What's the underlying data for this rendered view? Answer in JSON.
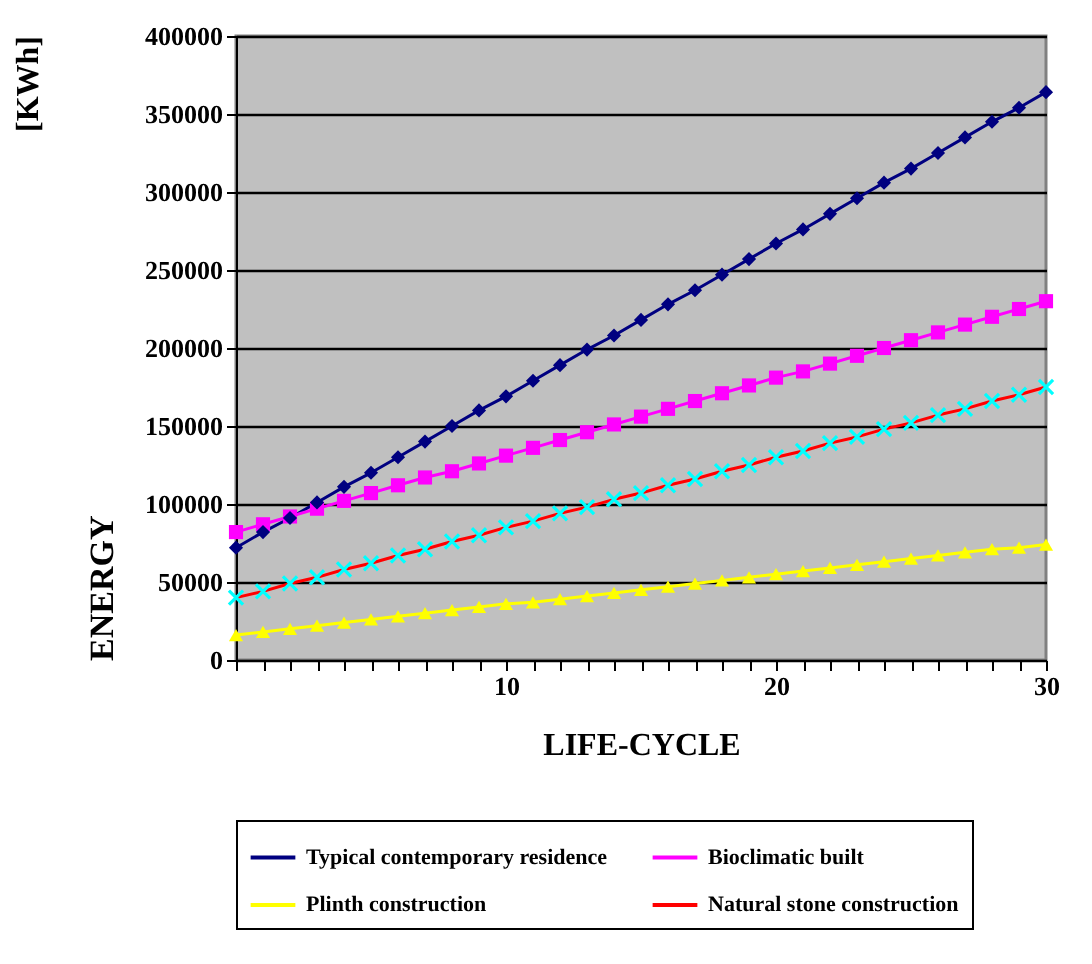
{
  "chart_data": {
    "type": "line",
    "xlabel": "LIFE-CYCLE",
    "ylabel": "ENERGY",
    "annotations": [
      "[KWh]"
    ],
    "x": [
      0,
      1,
      2,
      3,
      4,
      5,
      6,
      7,
      8,
      9,
      10,
      11,
      12,
      13,
      14,
      15,
      16,
      17,
      18,
      19,
      20,
      21,
      22,
      23,
      24,
      25,
      26,
      27,
      28,
      29,
      30
    ],
    "xlim": [
      0,
      30
    ],
    "xticks": [
      {
        "value": 0,
        "label": null
      },
      {
        "value": 1,
        "label": null
      },
      {
        "value": 2,
        "label": null
      },
      {
        "value": 3,
        "label": null
      },
      {
        "value": 4,
        "label": null
      },
      {
        "value": 5,
        "label": null
      },
      {
        "value": 6,
        "label": null
      },
      {
        "value": 7,
        "label": null
      },
      {
        "value": 8,
        "label": null
      },
      {
        "value": 9,
        "label": null
      },
      10,
      {
        "value": 11,
        "label": null
      },
      {
        "value": 12,
        "label": null
      },
      {
        "value": 13,
        "label": null
      },
      {
        "value": 14,
        "label": null
      },
      {
        "value": 15,
        "label": null
      },
      {
        "value": 16,
        "label": null
      },
      {
        "value": 17,
        "label": null
      },
      {
        "value": 18,
        "label": null
      },
      {
        "value": 19,
        "label": null
      },
      20,
      {
        "value": 21,
        "label": null
      },
      {
        "value": 22,
        "label": null
      },
      {
        "value": 23,
        "label": null
      },
      {
        "value": 24,
        "label": null
      },
      {
        "value": 25,
        "label": null
      },
      {
        "value": 26,
        "label": null
      },
      {
        "value": 27,
        "label": null
      },
      {
        "value": 28,
        "label": null
      },
      {
        "value": 29,
        "label": null
      },
      30
    ],
    "ylim": [
      0,
      400000
    ],
    "yticks": [
      0,
      50000,
      100000,
      150000,
      200000,
      250000,
      300000,
      350000,
      400000
    ],
    "grid": "y",
    "legend": "bottom",
    "line_style": "solid",
    "series": [
      {
        "name": "Typical contemporary residence",
        "color": "#000080",
        "marker": "diamond",
        "values": [
          72000,
          82000,
          91000,
          101000,
          111000,
          120000,
          130000,
          140000,
          150000,
          160000,
          169000,
          179000,
          189000,
          199000,
          208000,
          218000,
          228000,
          237000,
          247000,
          257000,
          267000,
          276000,
          286000,
          296000,
          306000,
          315000,
          325000,
          335000,
          345000,
          354000,
          364000
        ]
      },
      {
        "name": "Bioclimatic built",
        "color": "#ff00ff",
        "marker": "square",
        "values": [
          82000,
          87000,
          92000,
          97000,
          102000,
          107000,
          112000,
          117000,
          121000,
          126000,
          131000,
          136000,
          141000,
          146000,
          151000,
          156000,
          161000,
          166000,
          171000,
          176000,
          181000,
          185000,
          190000,
          195000,
          200000,
          205000,
          210000,
          215000,
          220000,
          225000,
          230000
        ]
      },
      {
        "name": "Plinth construction",
        "color": "#ffff00",
        "marker": "triangle",
        "values": [
          16000,
          18000,
          20000,
          22000,
          24000,
          26000,
          28000,
          30000,
          32000,
          34000,
          36000,
          37000,
          39000,
          41000,
          43000,
          45000,
          47000,
          49000,
          51000,
          53000,
          55000,
          57000,
          59000,
          61000,
          63000,
          65000,
          67000,
          69000,
          71000,
          72000,
          74000
        ]
      },
      {
        "name": "Natural stone construction",
        "color": "#ff0000",
        "marker": "cross",
        "colors": [
          "#00ffff",
          "#00ffff",
          "#00ffff",
          "#00ffff",
          "#00ffff",
          "#00ffff",
          "#00ffff",
          "#00ffff",
          "#00ffff",
          "#00ffff",
          "#00ffff",
          "#00ffff",
          "#00ffff",
          "#00ffff",
          "#00ffff",
          "#00ffff",
          "#00ffff",
          "#00ffff",
          "#00ffff",
          "#00ffff",
          "#00ffff",
          "#00ffff",
          "#00ffff",
          "#00ffff",
          "#00ffff",
          "#00ffff",
          "#00ffff",
          "#00ffff",
          "#00ffff",
          "#00ffff",
          "#00ffff"
        ],
        "values": [
          40000,
          44000,
          49000,
          53000,
          58000,
          62000,
          67000,
          71000,
          76000,
          80000,
          85000,
          89000,
          94000,
          98000,
          103000,
          107000,
          112000,
          116000,
          121000,
          125000,
          130000,
          134000,
          139000,
          143000,
          148000,
          152000,
          157000,
          161000,
          166000,
          170000,
          175000
        ]
      }
    ]
  }
}
